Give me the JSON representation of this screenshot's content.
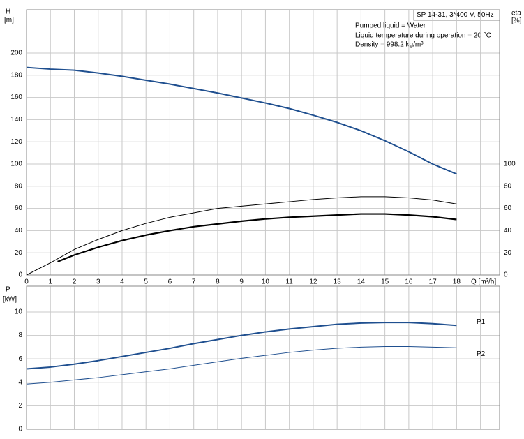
{
  "chart_data": [
    {
      "type": "line",
      "info": "SP 14-31, 3*400 V, 50Hz",
      "annotations": [
        "Pumped liquid = Water",
        "Liquid temperature during operation = 20 °C",
        "Density = 998.2 kg/m³"
      ],
      "ylabel": [
        "H",
        "[m]"
      ],
      "y2label": [
        "eta",
        "[%]"
      ],
      "xlabel": "Q [m³/h]",
      "xlim": [
        0,
        19.8
      ],
      "xticks": [
        0,
        1,
        2,
        3,
        4,
        5,
        6,
        7,
        8,
        9,
        10,
        11,
        12,
        13,
        14,
        15,
        16,
        17,
        18
      ],
      "xgrid": [
        0,
        1,
        2,
        3,
        4,
        5,
        6,
        7,
        8,
        9,
        10,
        11,
        12,
        13,
        14,
        15,
        16,
        17,
        18,
        19
      ],
      "ylim": [
        0,
        239
      ],
      "yticks": [
        0,
        20,
        40,
        60,
        80,
        100,
        120,
        140,
        160,
        180,
        200
      ],
      "y2lim": [
        0,
        239
      ],
      "y2ticks": [
        0,
        20,
        40,
        60,
        80,
        100
      ],
      "grid": true,
      "series": [
        {
          "color": "#1f4f8f",
          "line_width": 2,
          "x": [
            0,
            1,
            2,
            3,
            4,
            5,
            6,
            7,
            8,
            9,
            10,
            11,
            12,
            13,
            14,
            15,
            16,
            17,
            18
          ],
          "values": [
            187,
            185.5,
            184.5,
            182,
            179,
            175.5,
            172,
            168,
            164,
            159.5,
            155,
            150,
            144,
            137.5,
            130,
            121,
            111,
            100,
            91
          ]
        },
        {
          "color": "#000000",
          "line_width": 1,
          "axis": "y2",
          "x": [
            0,
            1,
            2,
            3,
            4,
            5,
            6,
            7,
            8,
            9,
            10,
            11,
            12,
            13,
            14,
            15,
            16,
            17,
            18
          ],
          "values": [
            0,
            11,
            23,
            32,
            40,
            46.5,
            52,
            56,
            60,
            62,
            64,
            66,
            68,
            69.5,
            70.5,
            70.5,
            69.5,
            67.5,
            64
          ]
        },
        {
          "color": "#000000",
          "line_width": 2.2,
          "axis": "y2",
          "x": [
            1.3,
            2,
            3,
            4,
            5,
            6,
            7,
            8,
            9,
            10,
            11,
            12,
            13,
            14,
            15,
            16,
            17,
            18
          ],
          "values": [
            12,
            18,
            25,
            31,
            36,
            40,
            43.5,
            46,
            48.5,
            50.5,
            52,
            53,
            54,
            55,
            55,
            54,
            52.5,
            50
          ]
        }
      ]
    },
    {
      "type": "line",
      "ylabel": [
        "P",
        "[kW]"
      ],
      "xlim": [
        0,
        19.8
      ],
      "xgrid": [
        0,
        1,
        2,
        3,
        4,
        5,
        6,
        7,
        8,
        9,
        10,
        11,
        12,
        13,
        14,
        15,
        16,
        17,
        18,
        19
      ],
      "ylim": [
        0,
        12.2
      ],
      "yticks": [
        0,
        2,
        4,
        6,
        8,
        10
      ],
      "grid": true,
      "series": [
        {
          "name": "P1",
          "color": "#1f4f8f",
          "line_width": 2,
          "x": [
            0,
            1,
            2,
            3,
            4,
            5,
            6,
            7,
            8,
            9,
            10,
            11,
            12,
            13,
            14,
            15,
            16,
            17,
            18
          ],
          "values": [
            5.15,
            5.3,
            5.55,
            5.85,
            6.2,
            6.55,
            6.9,
            7.3,
            7.65,
            8.0,
            8.3,
            8.55,
            8.75,
            8.95,
            9.05,
            9.1,
            9.1,
            9.0,
            8.85
          ]
        },
        {
          "name": "P2",
          "color": "#1f4f8f",
          "line_width": 1,
          "x": [
            0,
            1,
            2,
            3,
            4,
            5,
            6,
            7,
            8,
            9,
            10,
            11,
            12,
            13,
            14,
            15,
            16,
            17,
            18
          ],
          "values": [
            3.85,
            4.0,
            4.2,
            4.4,
            4.65,
            4.9,
            5.15,
            5.45,
            5.75,
            6.05,
            6.3,
            6.55,
            6.75,
            6.9,
            7.0,
            7.05,
            7.05,
            7.0,
            6.95
          ]
        }
      ]
    }
  ]
}
